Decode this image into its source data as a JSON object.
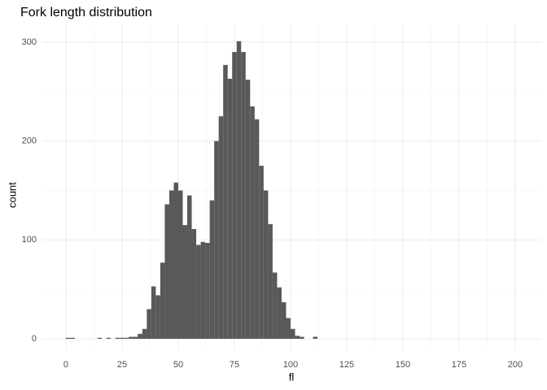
{
  "chart_data": {
    "type": "histogram",
    "title": "Fork length distribution",
    "x_label": "fl",
    "y_label": "count",
    "bins": [
      0,
      2,
      4,
      6,
      8,
      10,
      12,
      14,
      16,
      18,
      20,
      22,
      24,
      26,
      28,
      30,
      32,
      34,
      36,
      38,
      40,
      42,
      44,
      46,
      48,
      50,
      52,
      54,
      56,
      58,
      60,
      62,
      64,
      66,
      68,
      70,
      72,
      74,
      76,
      78,
      80,
      82,
      84,
      86,
      88,
      90,
      92,
      94,
      96,
      98,
      100,
      102,
      104,
      106,
      108,
      110,
      112
    ],
    "values": [
      1,
      1,
      0,
      0,
      0,
      0,
      0,
      1,
      0,
      1,
      0,
      1,
      1,
      1,
      2,
      2,
      5,
      10,
      30,
      53,
      44,
      77,
      136,
      150,
      158,
      150,
      115,
      145,
      111,
      95,
      98,
      97,
      140,
      200,
      225,
      277,
      263,
      290,
      301,
      290,
      262,
      235,
      222,
      175,
      150,
      116,
      67,
      52,
      37,
      21,
      10,
      3,
      2,
      0,
      0,
      2
    ],
    "color": "#595959",
    "xlim": [
      -10.5,
      211.6
    ],
    "xticks": [
      0,
      25,
      50,
      75,
      100,
      125,
      150,
      175,
      200
    ],
    "ylim": [
      -10.7,
      318
    ],
    "yticks": [
      0,
      100,
      200,
      300
    ],
    "grid": true
  }
}
